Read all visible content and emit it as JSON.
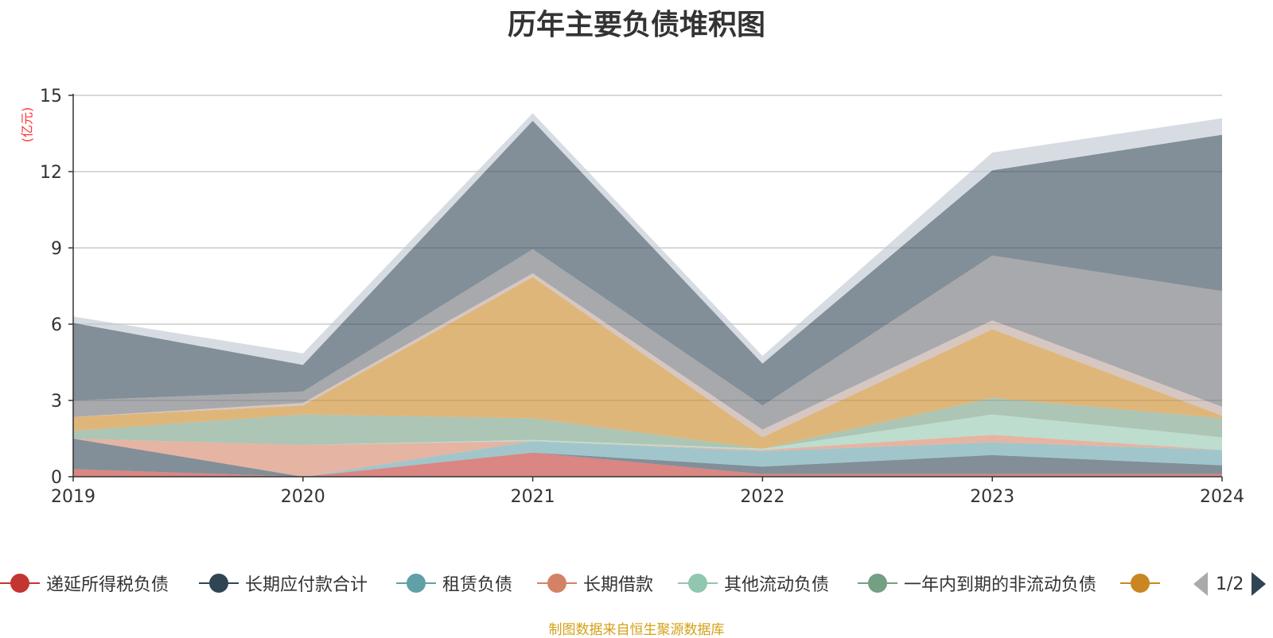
{
  "chart_data": {
    "type": "area",
    "stacked": true,
    "title": "历年主要负债堆积图",
    "unit_label": "(亿元)",
    "x": [
      "2019",
      "2020",
      "2021",
      "2022",
      "2023",
      "2024"
    ],
    "ylim": [
      0,
      15
    ],
    "yticks": [
      "0",
      "3",
      "6",
      "9",
      "12",
      "15"
    ],
    "grid": true,
    "series": [
      {
        "name": "递延所得税负债",
        "color": "#c23531",
        "values": [
          0.3,
          0.0,
          0.95,
          0.1,
          0.1,
          0.1
        ]
      },
      {
        "name": "长期应付款合计",
        "color": "#2f4554",
        "values": [
          1.2,
          0.0,
          0.0,
          0.3,
          0.75,
          0.35
        ]
      },
      {
        "name": "租赁负债",
        "color": "#61a0a8",
        "values": [
          0.0,
          0.0,
          0.45,
          0.6,
          0.5,
          0.6
        ]
      },
      {
        "name": "长期借款",
        "color": "#d48265",
        "values": [
          0.0,
          1.25,
          0.0,
          0.05,
          0.3,
          0.0
        ]
      },
      {
        "name": "其他流动负债",
        "color": "#91c7ae",
        "values": [
          0.0,
          0.0,
          0.05,
          0.05,
          0.8,
          0.5
        ]
      },
      {
        "name": "一年内到期的非流动负债",
        "color": "#749f83",
        "values": [
          0.3,
          1.2,
          0.85,
          0.0,
          0.65,
          0.75
        ]
      },
      {
        "name": "",
        "color": "#ca8622",
        "values": [
          0.55,
          0.35,
          5.55,
          0.45,
          2.7,
          0.1
        ]
      },
      {
        "name": "",
        "color": "#bda29a",
        "values": [
          0.0,
          0.1,
          0.15,
          0.3,
          0.35,
          0.35
        ]
      },
      {
        "name": "",
        "color": "#6e7074",
        "values": [
          0.65,
          0.45,
          0.95,
          0.95,
          2.55,
          4.55
        ]
      },
      {
        "name": "",
        "color": "#2f4554",
        "values": [
          3.05,
          1.05,
          5.05,
          1.65,
          3.35,
          6.15
        ]
      },
      {
        "name": "",
        "color": "#bcc5d1",
        "values": [
          0.25,
          0.45,
          0.3,
          0.3,
          0.7,
          0.65
        ]
      }
    ]
  },
  "legend": {
    "page_indicator": "1/2"
  },
  "source_note": "制图数据来自恒生聚源数据库"
}
